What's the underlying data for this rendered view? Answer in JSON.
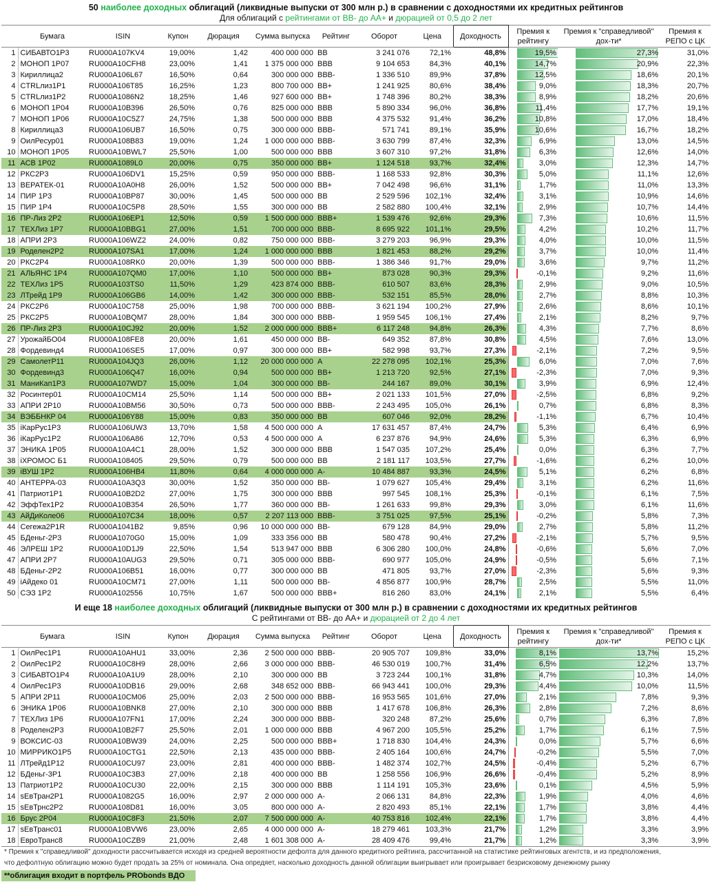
{
  "table1": {
    "title_a": "50 ",
    "title_hl": "наиболее доходных",
    "title_b": " облигаций (ликвидные выпуски от 300 млн р.) в сравнении с доходностями их кредитных рейтингов",
    "sub_a": "Для облигаций с ",
    "sub_hl1": "рейтингами от ВВ- до АА+",
    "sub_b": " и ",
    "sub_hl2": "дюрацией от 0,5 до 2 лет",
    "rows": [
      [
        "СИБАВТО1Р3",
        "RU000A107KV4",
        "19,00%",
        "1,42",
        "400 000 000",
        "BB",
        "3 241 076",
        "72,1%",
        "48,8%",
        "19,5%",
        "27,3%",
        "31,0%",
        false
      ],
      [
        "МОНОП 1Р07",
        "RU000A10CFH8",
        "23,00%",
        "1,41",
        "1 375 000 000",
        "BBB",
        "9 104 653",
        "84,3%",
        "40,1%",
        "14,7%",
        "20,9%",
        "22,3%",
        false
      ],
      [
        "Кириллица2",
        "RU000A106L67",
        "16,50%",
        "0,64",
        "300 000 000",
        "BBB-",
        "1 336 510",
        "89,9%",
        "37,8%",
        "12,5%",
        "18,6%",
        "20,1%",
        false
      ],
      [
        "CTRLлиз1Р1",
        "RU000A106T85",
        "16,25%",
        "1,23",
        "800 700 000",
        "BB+",
        "1 241 925",
        "80,6%",
        "38,4%",
        "9,0%",
        "18,3%",
        "20,7%",
        false
      ],
      [
        "CTRLлиз1Р2",
        "RU000A1086N2",
        "18,25%",
        "1,46",
        "927 600 000",
        "BB+",
        "1 748 396",
        "80,2%",
        "38,3%",
        "8,9%",
        "18,2%",
        "20,6%",
        false
      ],
      [
        "МОНОП 1Р04",
        "RU000A10B396",
        "26,50%",
        "0,76",
        "825 000 000",
        "BBB",
        "5 890 334",
        "96,0%",
        "36,8%",
        "11,4%",
        "17,7%",
        "19,1%",
        false
      ],
      [
        "МОНОП 1Р06",
        "RU000A10C5Z7",
        "24,75%",
        "1,38",
        "500 000 000",
        "BBB",
        "4 375 532",
        "91,4%",
        "36,2%",
        "10,8%",
        "17,0%",
        "18,4%",
        false
      ],
      [
        "Кириллица3",
        "RU000A106UB7",
        "16,50%",
        "0,75",
        "300 000 000",
        "BBB-",
        "571 741",
        "89,1%",
        "35,9%",
        "10,6%",
        "16,7%",
        "18,2%",
        false
      ],
      [
        "ОилРесур01",
        "RU000A108B83",
        "19,00%",
        "1,24",
        "1 000 000 000",
        "BBB-",
        "3 630 799",
        "87,4%",
        "32,3%",
        "6,9%",
        "13,0%",
        "14,5%",
        false
      ],
      [
        "МОНОП 1Р05",
        "RU000A10BWL7",
        "25,50%",
        "1,00",
        "500 000 000",
        "BBB",
        "3 607 310",
        "97,2%",
        "31,8%",
        "6,3%",
        "12,6%",
        "14,0%",
        false
      ],
      [
        "АСВ 1Р02",
        "RU000A1089L0",
        "20,00%",
        "0,75",
        "350 000 000",
        "BB+",
        "1 124 518",
        "93,7%",
        "32,4%",
        "3,0%",
        "12,3%",
        "14,7%",
        true
      ],
      [
        "РКС2Р3",
        "RU000A106DV1",
        "15,25%",
        "0,59",
        "950 000 000",
        "BBB-",
        "1 168 533",
        "92,8%",
        "30,3%",
        "5,0%",
        "11,1%",
        "12,6%",
        false
      ],
      [
        "ВЕРАТЕК-01",
        "RU000A10A0H8",
        "26,00%",
        "1,52",
        "500 000 000",
        "BB+",
        "7 042 498",
        "96,6%",
        "31,1%",
        "1,7%",
        "11,0%",
        "13,3%",
        false
      ],
      [
        "ПИР 1Р3",
        "RU000A10BP87",
        "30,00%",
        "1,45",
        "500 000 000",
        "BB",
        "2 529 596",
        "102,1%",
        "32,4%",
        "3,1%",
        "10,9%",
        "14,6%",
        false
      ],
      [
        "ПИР 1Р4",
        "RU000A10C5P8",
        "28,50%",
        "1,55",
        "300 000 000",
        "BB",
        "2 582 880",
        "100,4%",
        "32,1%",
        "2,9%",
        "10,7%",
        "14,4%",
        false
      ],
      [
        "ПР-Лиз 2Р2",
        "RU000A106EP1",
        "12,50%",
        "0,59",
        "1 500 000 000",
        "BBB+",
        "1 539 476",
        "92,6%",
        "29,3%",
        "7,3%",
        "10,6%",
        "11,5%",
        true
      ],
      [
        "ТЕХЛиз 1Р7",
        "RU000A10BBG1",
        "27,00%",
        "1,51",
        "700 000 000",
        "BBB-",
        "8 695 922",
        "101,1%",
        "29,5%",
        "4,2%",
        "10,2%",
        "11,7%",
        true
      ],
      [
        "АПРИ 2Р3",
        "RU000A106WZ2",
        "24,00%",
        "0,82",
        "750 000 000",
        "BBB-",
        "3 279 203",
        "96,9%",
        "29,3%",
        "4,0%",
        "10,0%",
        "11,5%",
        false
      ],
      [
        "Роделен2Р2",
        "RU000A107SA1",
        "17,00%",
        "1,24",
        "1 000 000 000",
        "BBB",
        "1 821 453",
        "88,2%",
        "29,2%",
        "3,7%",
        "10,0%",
        "11,4%",
        true
      ],
      [
        "РКС2Р4",
        "RU000A108RK0",
        "20,00%",
        "1,39",
        "500 000 000",
        "BBB-",
        "1 386 346",
        "91,7%",
        "29,0%",
        "3,6%",
        "9,7%",
        "11,2%",
        false
      ],
      [
        "АЛЬЯНС 1Р4",
        "RU000A107QM0",
        "17,00%",
        "1,10",
        "500 000 000",
        "BB+",
        "873 028",
        "90,3%",
        "29,3%",
        "-0,1%",
        "9,2%",
        "11,6%",
        true
      ],
      [
        "ТЕХЛиз 1Р5",
        "RU000A103TS0",
        "11,50%",
        "1,29",
        "423 874 000",
        "BBB-",
        "610 507",
        "83,6%",
        "28,3%",
        "2,9%",
        "9,0%",
        "10,5%",
        true
      ],
      [
        "ЛТрейд 1Р9",
        "RU000A106GB6",
        "14,00%",
        "1,42",
        "300 000 000",
        "BBB-",
        "532 151",
        "85,5%",
        "28,0%",
        "2,7%",
        "8,8%",
        "10,3%",
        true
      ],
      [
        "РКС2Р6",
        "RU000A10C758",
        "25,00%",
        "1,98",
        "700 000 000",
        "BBB-",
        "3 621 194",
        "100,2%",
        "27,9%",
        "2,6%",
        "8,6%",
        "10,1%",
        false
      ],
      [
        "РКС2Р5",
        "RU000A10BQM7",
        "28,00%",
        "1,84",
        "300 000 000",
        "BBB-",
        "1 959 545",
        "106,1%",
        "27,4%",
        "2,1%",
        "8,2%",
        "9,7%",
        false
      ],
      [
        "ПР-Лиз 2Р3",
        "RU000A10CJ92",
        "20,00%",
        "1,52",
        "2 000 000 000",
        "BBB+",
        "6 117 248",
        "94,8%",
        "26,3%",
        "4,3%",
        "7,7%",
        "8,6%",
        true
      ],
      [
        "УрожайБО04",
        "RU000A108FE8",
        "20,00%",
        "1,61",
        "450 000 000",
        "BB-",
        "649 352",
        "87,8%",
        "30,8%",
        "4,5%",
        "7,6%",
        "13,0%",
        false
      ],
      [
        "Фордевинд4",
        "RU000A106SE5",
        "17,00%",
        "0,97",
        "300 000 000",
        "BB+",
        "582 998",
        "93,7%",
        "27,3%",
        "-2,1%",
        "7,2%",
        "9,5%",
        false
      ],
      [
        "СамолетР11",
        "RU000A104JQ3",
        "26,00%",
        "1,12",
        "20 000 000 000",
        "A",
        "22 278 095",
        "102,1%",
        "25,3%",
        "6,0%",
        "7,0%",
        "7,6%",
        true
      ],
      [
        "Фордевинд3",
        "RU000A106Q47",
        "16,00%",
        "0,94",
        "500 000 000",
        "BB+",
        "1 213 720",
        "92,5%",
        "27,1%",
        "-2,3%",
        "7,0%",
        "9,3%",
        true
      ],
      [
        "МаниКап1Р3",
        "RU000A107WD7",
        "15,00%",
        "1,04",
        "300 000 000",
        "BB-",
        "244 167",
        "89,0%",
        "30,1%",
        "3,9%",
        "6,9%",
        "12,4%",
        true
      ],
      [
        "Росинтер01",
        "RU000A10CM14",
        "25,50%",
        "1,14",
        "500 000 000",
        "BB+",
        "2 021 133",
        "101,5%",
        "27,0%",
        "-2,5%",
        "6,8%",
        "9,2%",
        false
      ],
      [
        "АПРИ 2Р10",
        "RU000A10BM56",
        "30,50%",
        "0,73",
        "500 000 000",
        "BBB-",
        "2 243 495",
        "105,0%",
        "26,1%",
        "0,7%",
        "6,8%",
        "8,3%",
        false
      ],
      [
        "ВЭББНКР 04",
        "RU000A106Y88",
        "15,00%",
        "0,83",
        "350 000 000",
        "BB",
        "607 046",
        "92,0%",
        "28,2%",
        "-1,1%",
        "6,7%",
        "10,4%",
        true
      ],
      [
        "iКарРус1Р3",
        "RU000A106UW3",
        "13,70%",
        "1,58",
        "4 500 000 000",
        "A",
        "17 631 457",
        "87,4%",
        "24,7%",
        "5,3%",
        "6,4%",
        "6,9%",
        false
      ],
      [
        "iКарРус1Р2",
        "RU000A106A86",
        "12,70%",
        "0,53",
        "4 500 000 000",
        "A",
        "6 237 876",
        "94,9%",
        "24,6%",
        "5,3%",
        "6,3%",
        "6,9%",
        false
      ],
      [
        "ЭНИКА 1Р05",
        "RU000A10A4C1",
        "28,00%",
        "1,52",
        "300 000 000",
        "BBB",
        "1 547 035",
        "107,2%",
        "25,4%",
        "0,0%",
        "6,3%",
        "7,7%",
        false
      ],
      [
        "iХРОМОС Б1",
        "RU000A108405",
        "29,50%",
        "0,79",
        "500 000 000",
        "BB",
        "2 181 117",
        "103,5%",
        "27,7%",
        "-1,6%",
        "6,2%",
        "10,0%",
        false
      ],
      [
        "iВУШ 1Р2",
        "RU000A106HB4",
        "11,80%",
        "0,64",
        "4 000 000 000",
        "A-",
        "10 484 887",
        "93,3%",
        "24,5%",
        "5,1%",
        "6,2%",
        "6,8%",
        true
      ],
      [
        "АНТЕРРА-03",
        "RU000A10A3Q3",
        "30,00%",
        "1,52",
        "350 000 000",
        "BB-",
        "1 079 627",
        "105,4%",
        "29,4%",
        "3,1%",
        "6,2%",
        "11,6%",
        false
      ],
      [
        "Патриот1Р1",
        "RU000A10B2D2",
        "27,00%",
        "1,75",
        "300 000 000",
        "BBB",
        "997 545",
        "108,1%",
        "25,3%",
        "-0,1%",
        "6,1%",
        "7,5%",
        false
      ],
      [
        "ЭффТех1Р2",
        "RU000A10B354",
        "26,50%",
        "1,77",
        "360 000 000",
        "BB-",
        "1 261 633",
        "99,8%",
        "29,3%",
        "3,0%",
        "6,1%",
        "11,6%",
        false
      ],
      [
        "АйДиКоле06",
        "RU000A107C34",
        "18,00%",
        "0,57",
        "2 207 113 000",
        "BBB-",
        "3 751 025",
        "97,5%",
        "25,1%",
        "-0,2%",
        "5,8%",
        "7,3%",
        true
      ],
      [
        "Сегежа2Р1R",
        "RU000A1041B2",
        "9,85%",
        "0,96",
        "10 000 000 000",
        "BB-",
        "679 128",
        "84,9%",
        "29,0%",
        "2,7%",
        "5,8%",
        "11,2%",
        false
      ],
      [
        "БДеньг-2Р3",
        "RU000A1070G0",
        "15,00%",
        "1,09",
        "333 356 000",
        "BB",
        "580 478",
        "90,4%",
        "27,2%",
        "-2,1%",
        "5,7%",
        "9,5%",
        false
      ],
      [
        "ЭЛРЕШ 1Р2",
        "RU000A10D1J9",
        "22,50%",
        "1,54",
        "513 947 000",
        "BBB",
        "6 306 280",
        "100,0%",
        "24,8%",
        "-0,6%",
        "5,6%",
        "7,0%",
        false
      ],
      [
        "АПРИ 2Р7",
        "RU000A10AUG3",
        "29,50%",
        "0,71",
        "305 000 000",
        "BBB-",
        "690 977",
        "105,0%",
        "24,9%",
        "-0,5%",
        "5,6%",
        "7,1%",
        false
      ],
      [
        "БДеньг-2Р2",
        "RU000A106B51",
        "16,00%",
        "0,77",
        "300 000 000",
        "BB",
        "471 805",
        "93,7%",
        "27,0%",
        "-2,3%",
        "5,6%",
        "9,3%",
        false
      ],
      [
        "iАйдеко 01",
        "RU000A10CM71",
        "27,00%",
        "1,11",
        "500 000 000",
        "BB-",
        "4 856 877",
        "100,9%",
        "28,7%",
        "2,5%",
        "5,5%",
        "11,0%",
        false
      ],
      [
        "СЭЗ 1Р2",
        "RU000A102556",
        "10,75%",
        "1,67",
        "500 000 000",
        "BBB+",
        "816 260",
        "83,0%",
        "24,1%",
        "2,1%",
        "5,5%",
        "6,4%",
        false
      ]
    ]
  },
  "table2": {
    "title_a": "И еще 18 ",
    "title_hl": "наиболее доходных",
    "title_b": " облигаций (ликвидные выпуски от 300 млн р.) в сравнении с доходностями их кредитных рейтингов",
    "sub_a": "С рейтингами от ВВ- до АА+ и ",
    "sub_hl": "дюрацией от 2 до 4 лет",
    "rows": [
      [
        "ОилРес1Р1",
        "RU000A10AHU1",
        "33,00%",
        "2,36",
        "2 500 000 000",
        "BBB-",
        "20 905 707",
        "109,8%",
        "33,0%",
        "8,1%",
        "13,7%",
        "15,2%",
        false
      ],
      [
        "ОилРес1Р2",
        "RU000A10C8H9",
        "28,00%",
        "2,66",
        "3 000 000 000",
        "BBB-",
        "46 530 019",
        "100,7%",
        "31,4%",
        "6,5%",
        "12,2%",
        "13,7%",
        false
      ],
      [
        "СИБАВТО1Р4",
        "RU000A10A1U9",
        "28,00%",
        "2,10",
        "300 000 000",
        "BB",
        "3 723 244",
        "100,1%",
        "31,8%",
        "4,7%",
        "10,3%",
        "14,0%",
        false
      ],
      [
        "ОилРес1Р3",
        "RU000A10DB16",
        "29,00%",
        "2,68",
        "348 652 000",
        "BBB-",
        "66 943 441",
        "100,0%",
        "29,3%",
        "4,4%",
        "10,0%",
        "11,5%",
        false
      ],
      [
        "АПРИ 2Р11",
        "RU000A10CM06",
        "25,00%",
        "2,03",
        "2 500 000 000",
        "BBB-",
        "16 953 565",
        "101,6%",
        "27,0%",
        "2,1%",
        "7,8%",
        "9,3%",
        false
      ],
      [
        "ЭНИКА 1Р06",
        "RU000A10BNK8",
        "27,00%",
        "2,10",
        "300 000 000",
        "BBB",
        "1 417 678",
        "106,8%",
        "26,3%",
        "2,8%",
        "7,2%",
        "8,6%",
        false
      ],
      [
        "ТЕХЛиз 1Р6",
        "RU000A107FN1",
        "17,00%",
        "2,24",
        "300 000 000",
        "BBB-",
        "320 248",
        "87,2%",
        "25,6%",
        "0,7%",
        "6,3%",
        "7,8%",
        false
      ],
      [
        "Роделен2Р3",
        "RU000A10B2F7",
        "25,50%",
        "2,01",
        "1 000 000 000",
        "BBB",
        "4 967 200",
        "105,5%",
        "25,2%",
        "1,7%",
        "6,1%",
        "7,5%",
        false
      ],
      [
        "ВОКСИС-03",
        "RU000A10BW39",
        "24,00%",
        "2,25",
        "500 000 000",
        "BBB+",
        "1 718 830",
        "104,4%",
        "24,3%",
        "0,0%",
        "5,7%",
        "6,6%",
        false
      ],
      [
        "МИРРИКО1Р5",
        "RU000A10CTG1",
        "22,50%",
        "2,13",
        "435 000 000",
        "BBB-",
        "2 405 164",
        "100,6%",
        "24,7%",
        "-0,2%",
        "5,5%",
        "7,0%",
        false
      ],
      [
        "ЛТрейд1Р12",
        "RU000A10CU97",
        "23,00%",
        "2,81",
        "400 000 000",
        "BBB-",
        "1 482 374",
        "102,7%",
        "24,5%",
        "-0,4%",
        "5,2%",
        "6,7%",
        false
      ],
      [
        "БДеньг-3Р1",
        "RU000A10C3B3",
        "27,00%",
        "2,18",
        "400 000 000",
        "BB",
        "1 258 556",
        "106,9%",
        "26,6%",
        "-0,4%",
        "5,2%",
        "8,9%",
        false
      ],
      [
        "Патриот1Р2",
        "RU000A10CU30",
        "22,00%",
        "2,15",
        "300 000 000",
        "BBB",
        "1 114 191",
        "105,3%",
        "23,6%",
        "0,1%",
        "4,5%",
        "5,9%",
        false
      ],
      [
        "sЕвТран2Р1",
        "RU000A1082G5",
        "16,00%",
        "2,97",
        "2 000 000 000",
        "A-",
        "2 066 131",
        "84,8%",
        "22,3%",
        "1,9%",
        "4,0%",
        "4,6%",
        false
      ],
      [
        "sЕвТрнс2Р2",
        "RU000A108D81",
        "16,00%",
        "3,05",
        "800 000 000",
        "A-",
        "2 820 493",
        "85,1%",
        "22,1%",
        "1,7%",
        "3,8%",
        "4,4%",
        false
      ],
      [
        "Брус 2Р04",
        "RU000A10C8F3",
        "21,50%",
        "2,07",
        "7 500 000 000",
        "A-",
        "40 753 816",
        "102,4%",
        "22,1%",
        "1,7%",
        "3,8%",
        "4,4%",
        true
      ],
      [
        "sЕвТранс01",
        "RU000A10BVW6",
        "23,00%",
        "2,65",
        "4 000 000 000",
        "A-",
        "18 279 461",
        "103,3%",
        "21,7%",
        "1,2%",
        "3,3%",
        "3,9%",
        false
      ],
      [
        "ЕвроТранс8",
        "RU000A10CZB9",
        "21,00%",
        "2,48",
        "1 601 308 000",
        "A-",
        "28 409 476",
        "99,4%",
        "21,7%",
        "1,2%",
        "3,3%",
        "3,9%",
        false
      ]
    ]
  },
  "headers": [
    "",
    "Бумага",
    "ISIN",
    "Купон",
    "Дюрация",
    "Сумма выпуска",
    "Рейтинг",
    "Оборот",
    "Цена",
    "Доходность",
    "Премия к рейтингу",
    "Премия к \"справедливой\" дох-ти*",
    "Премия к РЕПО с ЦК"
  ],
  "footnote1": "* Премия к \"справедливой\" доходности рассчитывается исходя из средней вероятности дефолта для данного кредитного рейтинга, рассчитанной на статистике рейтинговых агентств, и из предположения,",
  "footnote2": "что дефолтную облигацию можно будет продать за 25% от номинала. Она опредяет, насколько доходность данной облигации выигрывает или проигрывает безрисковому денежному рынку",
  "portfolio_note": "**облигация входит в портфель PRObonds ВДО",
  "colors": {
    "highlight": "#a9d18e",
    "accent": "#22b24c",
    "bar_positive": "#63be7b",
    "bar_negative": "#f8696b"
  }
}
